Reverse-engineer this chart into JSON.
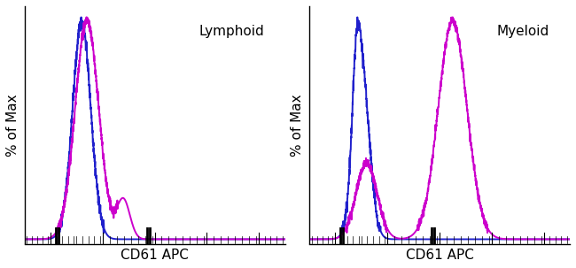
{
  "panel1_title": "Lymphoid",
  "panel2_title": "Myeloid",
  "xlabel": "CD61 APC",
  "ylabel": "% of Max",
  "blue_color": "#2020CC",
  "magenta_color": "#CC00CC",
  "background_color": "#FFFFFF",
  "linewidth": 1.4,
  "figsize": [
    6.5,
    3.03
  ],
  "dpi": 100
}
